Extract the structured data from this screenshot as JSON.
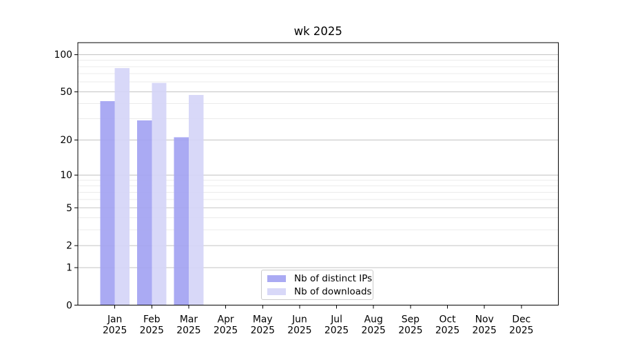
{
  "chart_data": {
    "type": "bar",
    "title": "wk 2025",
    "x": [
      {
        "month": "Jan",
        "year": "2025"
      },
      {
        "month": "Feb",
        "year": "2025"
      },
      {
        "month": "Mar",
        "year": "2025"
      },
      {
        "month": "Apr",
        "year": "2025"
      },
      {
        "month": "May",
        "year": "2025"
      },
      {
        "month": "Jun",
        "year": "2025"
      },
      {
        "month": "Jul",
        "year": "2025"
      },
      {
        "month": "Aug",
        "year": "2025"
      },
      {
        "month": "Sep",
        "year": "2025"
      },
      {
        "month": "Oct",
        "year": "2025"
      },
      {
        "month": "Nov",
        "year": "2025"
      },
      {
        "month": "Dec",
        "year": "2025"
      }
    ],
    "series": [
      {
        "name": "Nb of distinct IPs",
        "color": "#a3a3f2",
        "values": [
          42,
          29,
          21,
          null,
          null,
          null,
          null,
          null,
          null,
          null,
          null,
          null
        ]
      },
      {
        "name": "Nb of downloads",
        "color": "#d5d5f7",
        "values": [
          78,
          59,
          47,
          null,
          null,
          null,
          null,
          null,
          null,
          null,
          null,
          null
        ]
      }
    ],
    "yaxis": {
      "scale": "log(1+y)",
      "ticks": [
        {
          "value": 100,
          "label": "100"
        },
        {
          "value": 50,
          "label": "50"
        },
        {
          "value": 20,
          "label": "20"
        },
        {
          "value": 10,
          "label": "10"
        },
        {
          "value": 5,
          "label": "5"
        },
        {
          "value": 2,
          "label": "2"
        },
        {
          "value": 1,
          "label": "1"
        },
        {
          "value": 0,
          "label": "0"
        }
      ],
      "major_gridlines": [
        1,
        2,
        5,
        10,
        20,
        50,
        100
      ],
      "minor_gridlines": [
        3,
        4,
        6,
        7,
        8,
        9,
        30,
        40,
        60,
        70,
        80,
        90
      ]
    },
    "ylim": [
      0,
      125
    ],
    "grid": true,
    "legend": {
      "location": "lower center",
      "items": [
        "Nb of distinct IPs",
        "Nb of downloads"
      ]
    },
    "colors": {
      "major_grid": "#c3c3c3",
      "minor_grid": "#ebebeb",
      "axis": "#000000",
      "background": "#ffffff"
    }
  }
}
